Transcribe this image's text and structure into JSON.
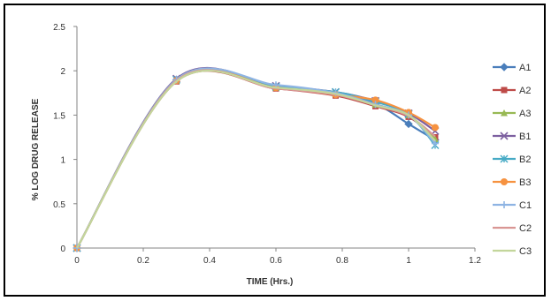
{
  "chart_data": {
    "type": "line",
    "xlabel": "TIME (Hrs.)",
    "ylabel": "% LOG DRUG RELEASE",
    "xlim": [
      0,
      1.2
    ],
    "ylim": [
      0,
      2.5
    ],
    "x_ticks": [
      "0",
      "0.2",
      "0.4",
      "0.6",
      "0.8",
      "1",
      "1.2"
    ],
    "y_ticks": [
      "0",
      "0.5",
      "1",
      "1.5",
      "2",
      "2.5"
    ],
    "grid": false,
    "legend_position": "right",
    "smooth": true,
    "x": [
      0,
      0.3,
      0.6,
      0.78,
      0.9,
      1.0,
      1.08
    ],
    "series": [
      {
        "name": "A1",
        "color": "#4a7ebb",
        "marker": "diamond",
        "values": [
          0,
          1.9,
          1.82,
          1.74,
          1.63,
          1.4,
          1.22
        ]
      },
      {
        "name": "A2",
        "color": "#be4b48",
        "marker": "square",
        "values": [
          0,
          1.88,
          1.8,
          1.72,
          1.6,
          1.48,
          1.25
        ]
      },
      {
        "name": "A3",
        "color": "#98b954",
        "marker": "triangle",
        "values": [
          0,
          1.89,
          1.81,
          1.74,
          1.62,
          1.5,
          1.23
        ]
      },
      {
        "name": "B1",
        "color": "#7d60a0",
        "marker": "x",
        "values": [
          0,
          1.91,
          1.83,
          1.76,
          1.66,
          1.52,
          1.32
        ]
      },
      {
        "name": "B2",
        "color": "#46aac5",
        "marker": "star",
        "values": [
          0,
          1.9,
          1.82,
          1.76,
          1.65,
          1.51,
          1.16
        ]
      },
      {
        "name": "B3",
        "color": "#f69240",
        "marker": "circle",
        "values": [
          0,
          1.89,
          1.81,
          1.73,
          1.67,
          1.53,
          1.36
        ]
      },
      {
        "name": "C1",
        "color": "#8eb4e3",
        "marker": "plus",
        "values": [
          0,
          1.9,
          1.84,
          1.75,
          1.62,
          1.5,
          1.18
        ]
      },
      {
        "name": "C2",
        "color": "#d99694",
        "marker": "none",
        "values": [
          0,
          1.89,
          1.8,
          1.73,
          1.61,
          1.49,
          1.26
        ]
      },
      {
        "name": "C3",
        "color": "#c3d69b",
        "marker": "none",
        "values": [
          0,
          1.88,
          1.81,
          1.74,
          1.61,
          1.5,
          1.21
        ]
      }
    ]
  }
}
